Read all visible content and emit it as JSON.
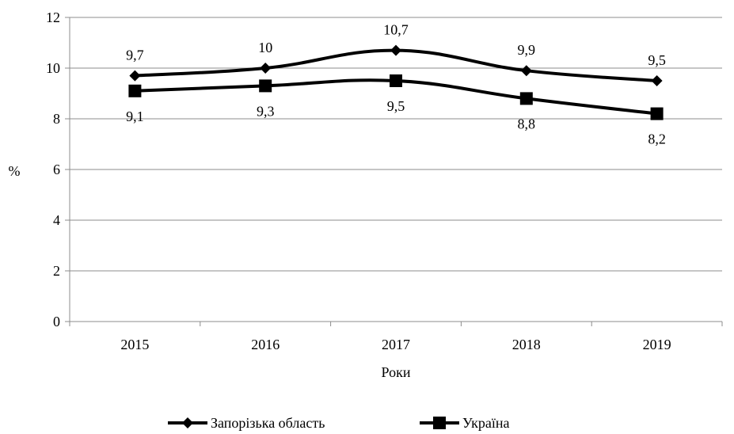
{
  "chart_data": {
    "type": "line",
    "title": "",
    "xlabel": "Роки",
    "ylabel": "%",
    "categories": [
      "2015",
      "2016",
      "2017",
      "2018",
      "2019"
    ],
    "ylim": [
      0,
      12
    ],
    "yticks": [
      0,
      2,
      4,
      6,
      8,
      10,
      12
    ],
    "grid": true,
    "legend_position": "bottom",
    "series": [
      {
        "name": "Запорізька область",
        "marker": "diamond",
        "values": [
          9.7,
          10,
          10.7,
          9.9,
          9.5
        ],
        "labels": [
          "9,7",
          "10",
          "10,7",
          "9,9",
          "9,5"
        ],
        "label_position": "above"
      },
      {
        "name": "Україна",
        "marker": "square",
        "values": [
          9.1,
          9.3,
          9.5,
          8.8,
          8.2
        ],
        "labels": [
          "9,1",
          "9,3",
          "9,5",
          "8,8",
          "8,2"
        ],
        "label_position": "below"
      }
    ],
    "colors": {
      "line": "#000000",
      "grid": "#8c8c8c",
      "axis": "#8c8c8c"
    }
  }
}
